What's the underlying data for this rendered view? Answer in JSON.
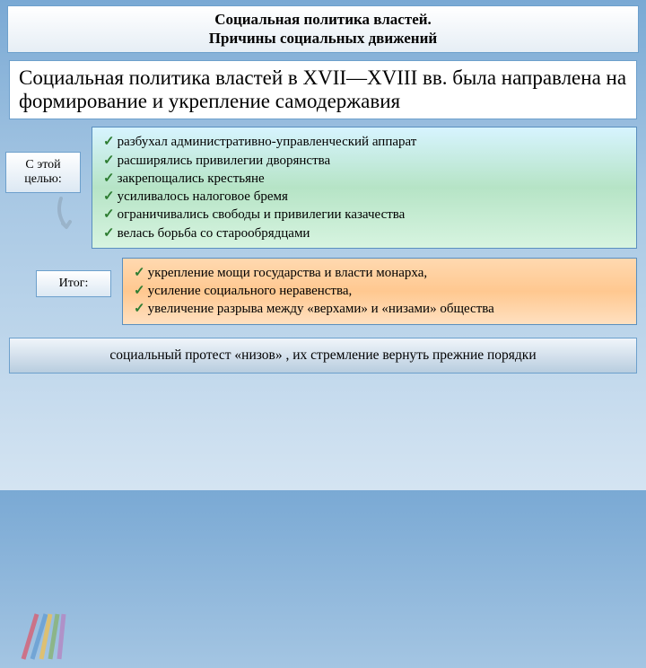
{
  "title": {
    "line1": "Социальная политика властей.",
    "line2": "Причины социальных движений"
  },
  "intro": "Социальная политика властей в XVII—XVIII вв. была направлена на формирование и укрепление самодержавия",
  "goal": {
    "label": "С этой целью:",
    "items": [
      "разбухал административно-управленческий аппарат",
      "расширялись привилегии дворянства",
      "закрепощались крестьяне",
      "усиливалось налоговое бремя",
      "ограничивались свободы и привилегии казачества",
      "велась борьба со старообрядцами"
    ]
  },
  "result": {
    "label": "Итог:",
    "items": [
      "укрепление мощи государства и власти монарха,",
      "усиление социального неравенства,",
      "увеличение разрыва между «верхами» и «низами» общества"
    ]
  },
  "protest": "социальный протест «низов» , их стремление вернуть прежние порядки",
  "colors": {
    "border": "#6da0cc",
    "check": "#2e7d32",
    "bg_top": "#7aa9d4",
    "goal_box": "#b6e4c6",
    "result_box": "#ffc890"
  }
}
